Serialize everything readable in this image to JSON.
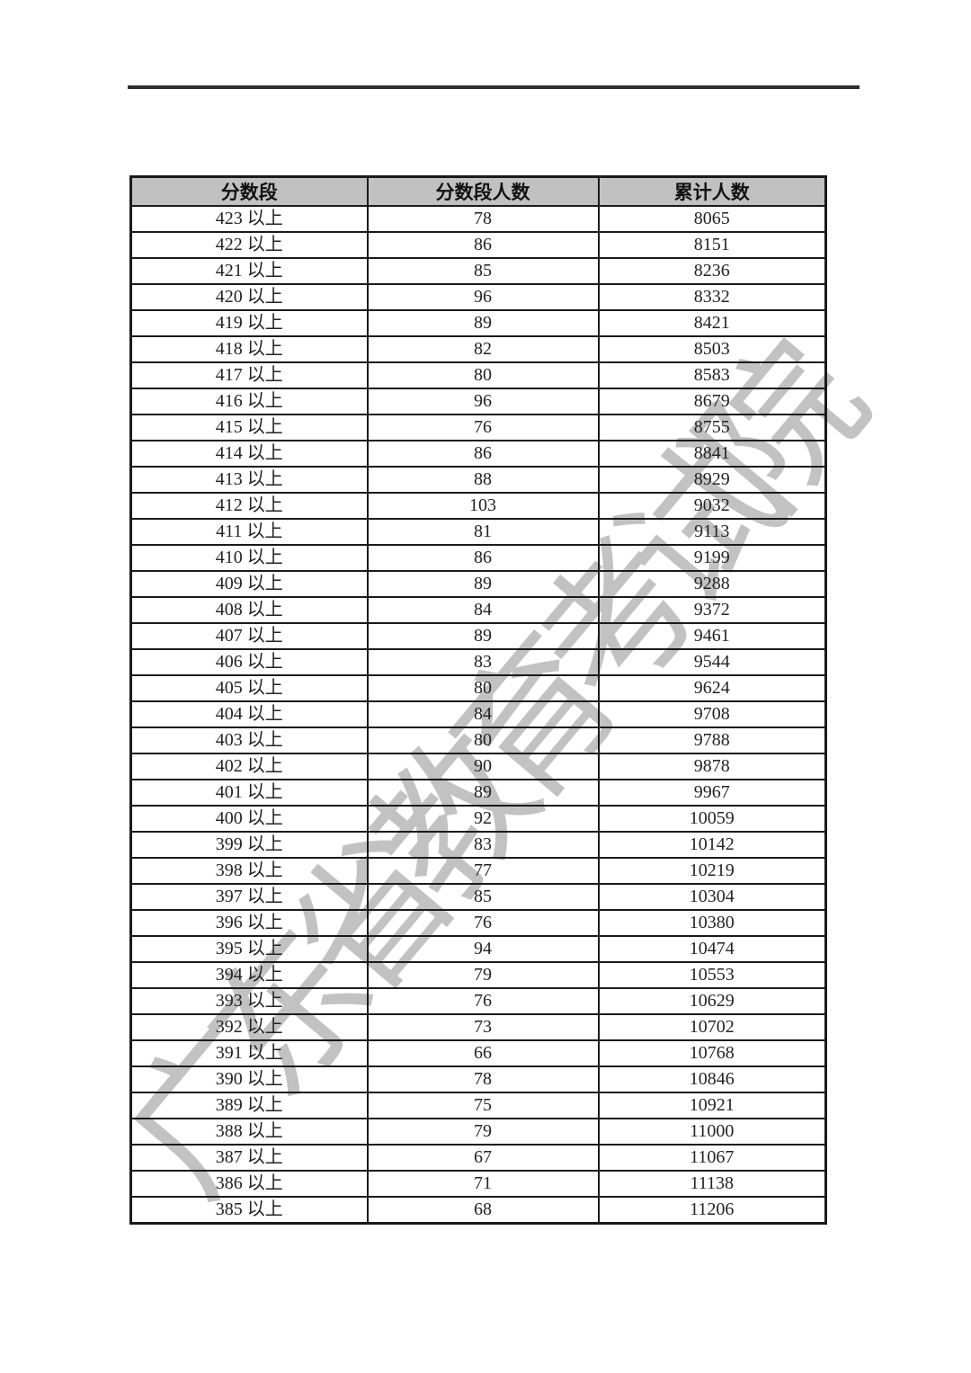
{
  "page": {
    "background_color": "#ffffff",
    "top_rule_color": "#2e2e2e",
    "border_color": "#1a1a1a",
    "text_color": "#232323"
  },
  "watermark": {
    "text": "广东省教育考试院",
    "color": "#7a7a7a"
  },
  "table": {
    "header_bg": "#c1c1c1",
    "headers": [
      "分数段",
      "分数段人数",
      "累计人数"
    ],
    "rows": [
      [
        "423 以上",
        78,
        8065
      ],
      [
        "422 以上",
        86,
        8151
      ],
      [
        "421 以上",
        85,
        8236
      ],
      [
        "420 以上",
        96,
        8332
      ],
      [
        "419 以上",
        89,
        8421
      ],
      [
        "418 以上",
        82,
        8503
      ],
      [
        "417 以上",
        80,
        8583
      ],
      [
        "416 以上",
        96,
        8679
      ],
      [
        "415 以上",
        76,
        8755
      ],
      [
        "414 以上",
        86,
        8841
      ],
      [
        "413 以上",
        88,
        8929
      ],
      [
        "412 以上",
        103,
        9032
      ],
      [
        "411 以上",
        81,
        9113
      ],
      [
        "410 以上",
        86,
        9199
      ],
      [
        "409 以上",
        89,
        9288
      ],
      [
        "408 以上",
        84,
        9372
      ],
      [
        "407 以上",
        89,
        9461
      ],
      [
        "406 以上",
        83,
        9544
      ],
      [
        "405 以上",
        80,
        9624
      ],
      [
        "404 以上",
        84,
        9708
      ],
      [
        "403 以上",
        80,
        9788
      ],
      [
        "402 以上",
        90,
        9878
      ],
      [
        "401 以上",
        89,
        9967
      ],
      [
        "400 以上",
        92,
        10059
      ],
      [
        "399 以上",
        83,
        10142
      ],
      [
        "398 以上",
        77,
        10219
      ],
      [
        "397 以上",
        85,
        10304
      ],
      [
        "396 以上",
        76,
        10380
      ],
      [
        "395 以上",
        94,
        10474
      ],
      [
        "394 以上",
        79,
        10553
      ],
      [
        "393 以上",
        76,
        10629
      ],
      [
        "392 以上",
        73,
        10702
      ],
      [
        "391 以上",
        66,
        10768
      ],
      [
        "390 以上",
        78,
        10846
      ],
      [
        "389 以上",
        75,
        10921
      ],
      [
        "388 以上",
        79,
        11000
      ],
      [
        "387 以上",
        67,
        11067
      ],
      [
        "386 以上",
        71,
        11138
      ],
      [
        "385 以上",
        68,
        11206
      ]
    ]
  }
}
